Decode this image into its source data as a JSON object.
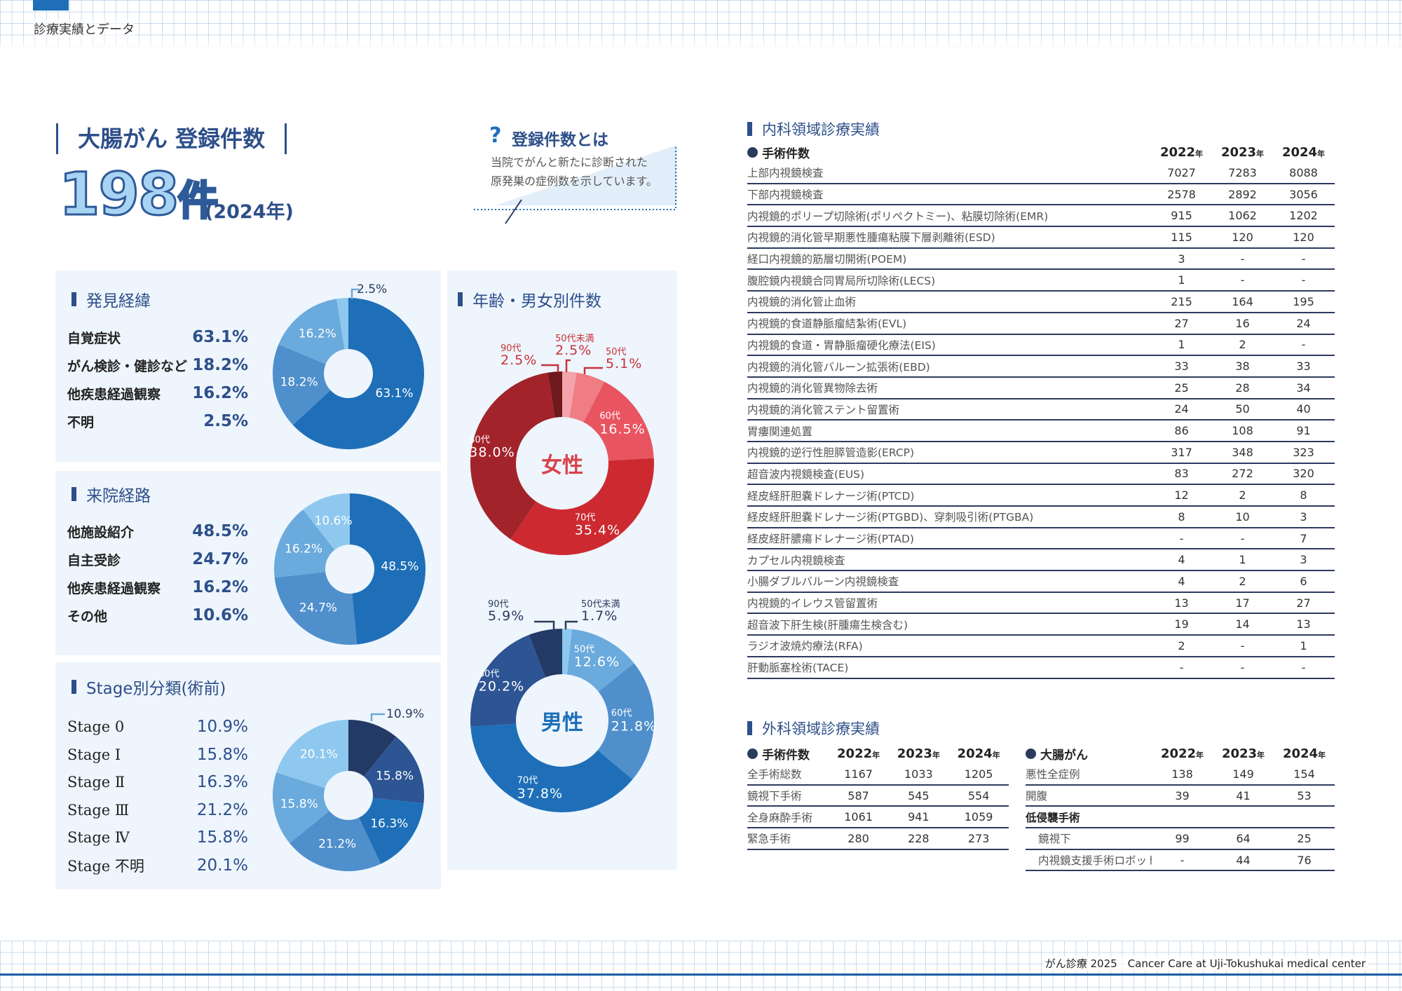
{
  "header": {
    "section": "診療実績とデータ"
  },
  "footer": {
    "text": "がん診療 2025　Cancer Care at Uji-Tokushukai medical center"
  },
  "summary": {
    "title": "大腸がん 登録件数",
    "count": "198",
    "unit": "件",
    "year": "(2024年)",
    "what_title": "登録件数とは",
    "what_icon": "question-icon",
    "what_lines": [
      "当院でがんと新たに診断された",
      "原発巣の症例数を示しています。"
    ]
  },
  "colors": {
    "accent": "#1e6fb8",
    "navy": "#2d4f8a",
    "panel": "#eef5fc"
  },
  "chart_data": [
    {
      "id": "discovery",
      "type": "pie",
      "title": "発見経緯",
      "categories": [
        "自覚症状",
        "がん検診・健診など",
        "他疾患経過観察",
        "不明"
      ],
      "values": [
        63.1,
        18.2,
        16.2,
        2.5
      ],
      "labels": [
        "63.1%",
        "18.2%",
        "16.2%",
        "2.5%"
      ],
      "colors": [
        "#1e6fb8",
        "#4f8fcc",
        "#6aaadd",
        "#8ec8ee"
      ]
    },
    {
      "id": "referral",
      "type": "pie",
      "title": "来院経路",
      "categories": [
        "他施設紹介",
        "自主受診",
        "他疾患経過観察",
        "その他"
      ],
      "values": [
        48.5,
        24.7,
        16.2,
        10.6
      ],
      "labels": [
        "48.5%",
        "24.7%",
        "16.2%",
        "10.6%"
      ],
      "colors": [
        "#1e6fb8",
        "#4f8fcc",
        "#6aaadd",
        "#8ec8ee"
      ]
    },
    {
      "id": "stage",
      "type": "pie",
      "title": "Stage別分類(術前)",
      "categories": [
        "Stage 0",
        "Stage Ⅰ",
        "Stage Ⅱ",
        "Stage Ⅲ",
        "Stage Ⅳ",
        "Stage 不明"
      ],
      "values": [
        10.9,
        15.8,
        16.3,
        21.2,
        15.8,
        20.1
      ],
      "labels": [
        "10.9%",
        "15.8%",
        "16.3%",
        "21.2%",
        "15.8%",
        "20.1%"
      ],
      "colors": [
        "#243a66",
        "#2d5493",
        "#1e6fb8",
        "#4f8fcc",
        "#6aaadd",
        "#8ec8ee"
      ]
    },
    {
      "id": "female",
      "type": "pie",
      "title": "年齢・男女別件数",
      "center": "女性",
      "center_color": "#d8434c",
      "categories": [
        "50代未満",
        "50代",
        "60代",
        "70代",
        "80代",
        "90代"
      ],
      "values": [
        2.5,
        5.1,
        16.5,
        35.4,
        38.0,
        2.5
      ],
      "labels": [
        "2.5%",
        "5.1%",
        "16.5%",
        "35.4%",
        "38.0%",
        "2.5%"
      ],
      "colors": [
        "#f4a3ab",
        "#ef7d83",
        "#e85560",
        "#cc2a30",
        "#a3232a",
        "#6e1a1e"
      ],
      "outside_label_color": "#c8323a"
    },
    {
      "id": "male",
      "type": "pie",
      "center": "男性",
      "center_color": "#1e6fb8",
      "categories": [
        "50代未満",
        "50代",
        "60代",
        "70代",
        "80代",
        "90代"
      ],
      "values": [
        1.7,
        12.6,
        21.8,
        37.8,
        20.2,
        5.9
      ],
      "labels": [
        "1.7%",
        "12.6%",
        "21.8%",
        "37.8%",
        "20.2%",
        "5.9%"
      ],
      "colors": [
        "#8ec8ee",
        "#6aaadd",
        "#4f8fcc",
        "#1e6fb8",
        "#2d5493",
        "#243a66"
      ],
      "outside_label_color": "#2b3b5e"
    }
  ],
  "internal": {
    "title": "内科領域診療実績",
    "col0": "手術件数",
    "years": [
      "2022",
      "2023",
      "2024"
    ],
    "year_suffix": "年",
    "rows": [
      [
        "上部内視鏡検査",
        "7027",
        "7283",
        "8088"
      ],
      [
        "下部内視鏡検査",
        "2578",
        "2892",
        "3056"
      ],
      [
        "内視鏡的ポリープ切除術(ポリペクトミー)、粘膜切除術(EMR)",
        "915",
        "1062",
        "1202"
      ],
      [
        "内視鏡的消化管早期悪性腫瘍粘膜下層剥離術(ESD)",
        "115",
        "120",
        "120"
      ],
      [
        "経口内視鏡的筋層切開術(POEM)",
        "3",
        "-",
        "-"
      ],
      [
        "腹腔鏡内視鏡合同胃局所切除術(LECS)",
        "1",
        "-",
        "-"
      ],
      [
        "内視鏡的消化管止血術",
        "215",
        "164",
        "195"
      ],
      [
        "内視鏡的食道静脈瘤結紮術(EVL)",
        "27",
        "16",
        "24"
      ],
      [
        "内視鏡的食道・胃静脈瘤硬化療法(EIS)",
        "1",
        "2",
        "-"
      ],
      [
        "内視鏡的消化管バルーン拡張術(EBD)",
        "33",
        "38",
        "33"
      ],
      [
        "内視鏡的消化管異物除去術",
        "25",
        "28",
        "34"
      ],
      [
        "内視鏡的消化管ステント留置術",
        "24",
        "50",
        "40"
      ],
      [
        "胃瘻関連処置",
        "86",
        "108",
        "91"
      ],
      [
        "内視鏡的逆行性胆膵管造影(ERCP)",
        "317",
        "348",
        "323"
      ],
      [
        "超音波内視鏡検査(EUS)",
        "83",
        "272",
        "320"
      ],
      [
        "経皮経肝胆嚢ドレナージ術(PTCD)",
        "12",
        "2",
        "8"
      ],
      [
        "経皮経肝胆嚢ドレナージ術(PTGBD)、穿刺吸引術(PTGBA)",
        "8",
        "10",
        "3"
      ],
      [
        "経皮経肝膿瘍ドレナージ術(PTAD)",
        "-",
        "-",
        "7"
      ],
      [
        "カプセル内視鏡検査",
        "4",
        "1",
        "3"
      ],
      [
        "小腸ダブルバルーン内視鏡検査",
        "4",
        "2",
        "6"
      ],
      [
        "内視鏡的イレウス管留置術",
        "13",
        "17",
        "27"
      ],
      [
        "超音波下肝生検(肝腫瘍生検含む)",
        "19",
        "14",
        "13"
      ],
      [
        "ラジオ波焼灼療法(RFA)",
        "2",
        "-",
        "1"
      ],
      [
        "肝動脈塞栓術(TACE)",
        "-",
        "-",
        "-"
      ]
    ]
  },
  "surgical": {
    "title": "外科領域診療実績",
    "ops": {
      "col0": "手術件数",
      "years": [
        "2022",
        "2023",
        "2024"
      ],
      "year_suffix": "年",
      "rows": [
        [
          "全手術総数",
          "1167",
          "1033",
          "1205"
        ],
        [
          "鏡視下手術",
          "587",
          "545",
          "554"
        ],
        [
          "全身麻酔手術",
          "1061",
          "941",
          "1059"
        ],
        [
          "緊急手術",
          "280",
          "228",
          "273"
        ]
      ]
    },
    "crc": {
      "col0": "大腸がん",
      "years": [
        "2022",
        "2023",
        "2024"
      ],
      "year_suffix": "年",
      "rows": [
        [
          "悪性全症例",
          "138",
          "149",
          "154"
        ],
        [
          "開腹",
          "39",
          "41",
          "53"
        ],
        [
          "低侵襲手術",
          "",
          "",
          ""
        ],
        [
          "鏡視下",
          "99",
          "64",
          "25"
        ],
        [
          "内視鏡支援手術ロボット",
          "-",
          "44",
          "76"
        ]
      ]
    }
  }
}
